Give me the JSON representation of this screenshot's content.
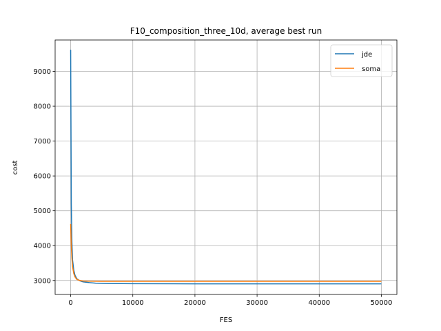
{
  "chart_data": {
    "type": "line",
    "title": "F10_composition_three_10d, average best run",
    "xlabel": "FES",
    "ylabel": "cost",
    "xlim": [
      -2500,
      52500
    ],
    "ylim": [
      2600,
      9900
    ],
    "xticks": [
      0,
      10000,
      20000,
      30000,
      40000,
      50000
    ],
    "yticks": [
      3000,
      4000,
      5000,
      6000,
      7000,
      8000,
      9000
    ],
    "grid": true,
    "legend_position": "top-right",
    "series": [
      {
        "name": "jde",
        "color": "#1f77b4",
        "x": [
          0,
          100,
          200,
          300,
          500,
          700,
          1000,
          1500,
          2000,
          3000,
          4000,
          6000,
          10000,
          20000,
          30000,
          40000,
          50000
        ],
        "y": [
          9620,
          5200,
          4100,
          3600,
          3300,
          3150,
          3050,
          2990,
          2960,
          2940,
          2925,
          2915,
          2910,
          2905,
          2905,
          2905,
          2905
        ]
      },
      {
        "name": "soma",
        "color": "#ff7f0e",
        "x": [
          0,
          100,
          200,
          300,
          500,
          700,
          1000,
          1500,
          2000,
          3000,
          5000,
          10000,
          20000,
          30000,
          40000,
          50000
        ],
        "y": [
          4620,
          4000,
          3650,
          3400,
          3200,
          3100,
          3030,
          3000,
          2985,
          2980,
          2975,
          2975,
          2975,
          2975,
          2975,
          2975
        ]
      }
    ]
  }
}
